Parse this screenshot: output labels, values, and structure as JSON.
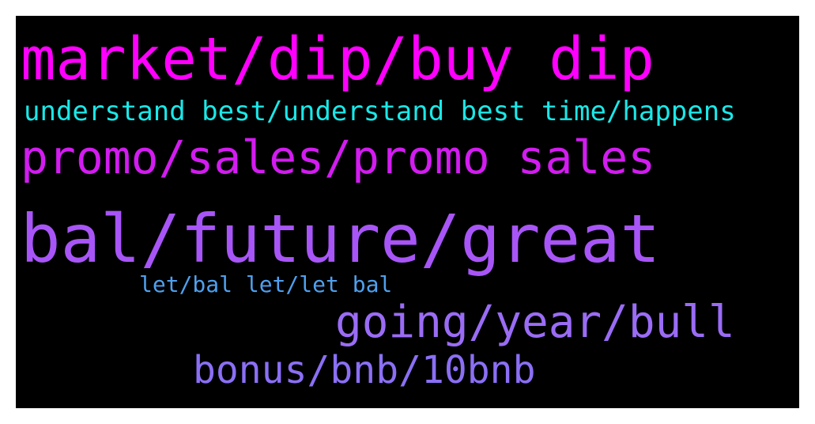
{
  "background_color": "#000000",
  "words": [
    {
      "text": "market/dip/buy dip",
      "color": "#ff00ff"
    },
    {
      "text": "understand best/understand best time/happens",
      "color": "#1ae8e8"
    },
    {
      "text": "promo/sales/promo sales",
      "color": "#d21cf0"
    },
    {
      "text": "bal/future/great",
      "color": "#a855f7"
    },
    {
      "text": "let/bal let/let bal",
      "color": "#4fa0ee"
    },
    {
      "text": "going/year/bull",
      "color": "#9a6cf5"
    },
    {
      "text": "bonus/bnb/10bnb",
      "color": "#8b6ff5"
    }
  ]
}
